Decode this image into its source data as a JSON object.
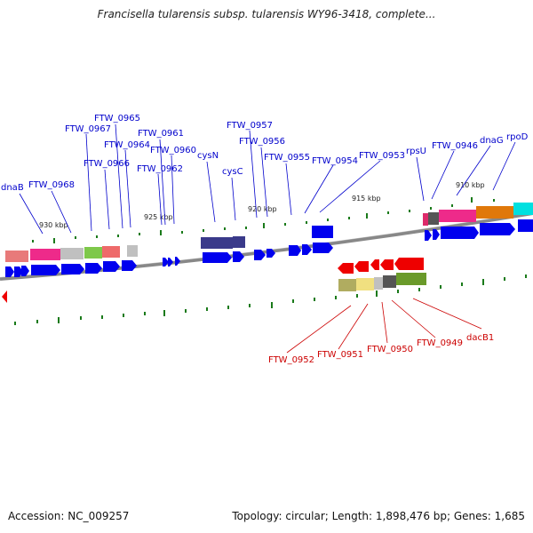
{
  "title": "Francisella tularensis subsp. tularensis WY96-3418, complete...",
  "accession_label": "Accession: NC_009257",
  "stats_label": "Topology: circular; Length: 1,898,476 bp; Genes: 1,685",
  "colors": {
    "fwd_arrow": "#0000ee",
    "rev_arrow": "#ee0000",
    "fwd_label": "#0000cc",
    "rev_label": "#cc0000",
    "tick": "#1a7a1a",
    "backbone": "#888888"
  },
  "kbp_labels": [
    "930 kbp",
    "925 kbp",
    "920 kbp",
    "915 kbp",
    "910 kbp"
  ],
  "forward_labels": [
    "dnaB",
    "FTW_0968",
    "FTW_0967",
    "FTW_0965",
    "FTW_0966",
    "FTW_0964",
    "FTW_0961",
    "FTW_0960",
    "FTW_0962",
    "cysN",
    "cysC",
    "FTW_0957",
    "FTW_0956",
    "FTW_0955",
    "FTW_0954",
    "FTW_0953",
    "rpsU",
    "FTW_0946",
    "dnaG",
    "rpoD"
  ],
  "reverse_labels": [
    "FTW_0952",
    "FTW_0951",
    "FTW_0950",
    "FTW_0949",
    "dacB1"
  ]
}
